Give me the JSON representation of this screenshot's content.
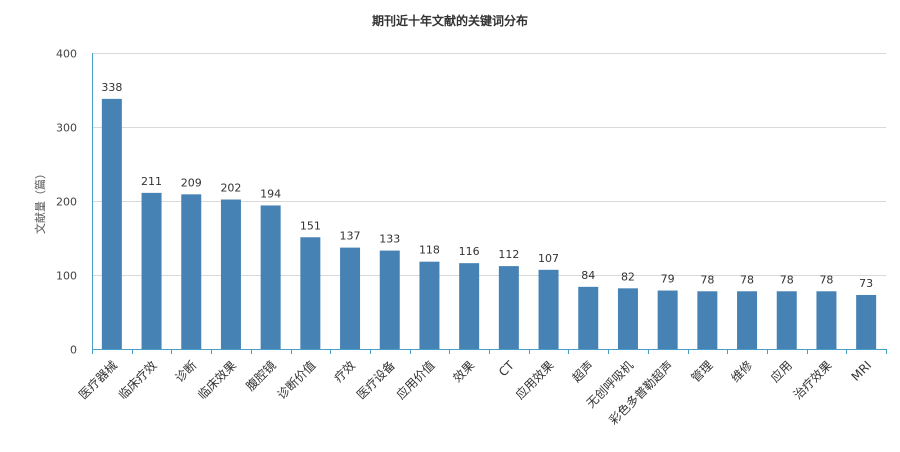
{
  "chart_data": {
    "type": "bar",
    "title": "期刊近十年文献的关键词分布",
    "ylabel": "文献量（篇）",
    "xlabel": "",
    "ylim": [
      0,
      400
    ],
    "yticks": [
      0,
      100,
      200,
      300,
      400
    ],
    "grid": true,
    "bar_color": "#4682b4",
    "categories": [
      "医疗器械",
      "临床疗效",
      "诊断",
      "临床效果",
      "腹腔镜",
      "诊断价值",
      "疗效",
      "医疗设备",
      "应用价值",
      "效果",
      "CT",
      "应用效果",
      "超声",
      "无创呼吸机",
      "彩色多普勒超声",
      "管理",
      "维修",
      "应用",
      "治疗效果",
      "MRI"
    ],
    "values": [
      338,
      211,
      209,
      202,
      194,
      151,
      137,
      133,
      118,
      116,
      112,
      107,
      84,
      82,
      79,
      78,
      78,
      78,
      78,
      73
    ]
  }
}
